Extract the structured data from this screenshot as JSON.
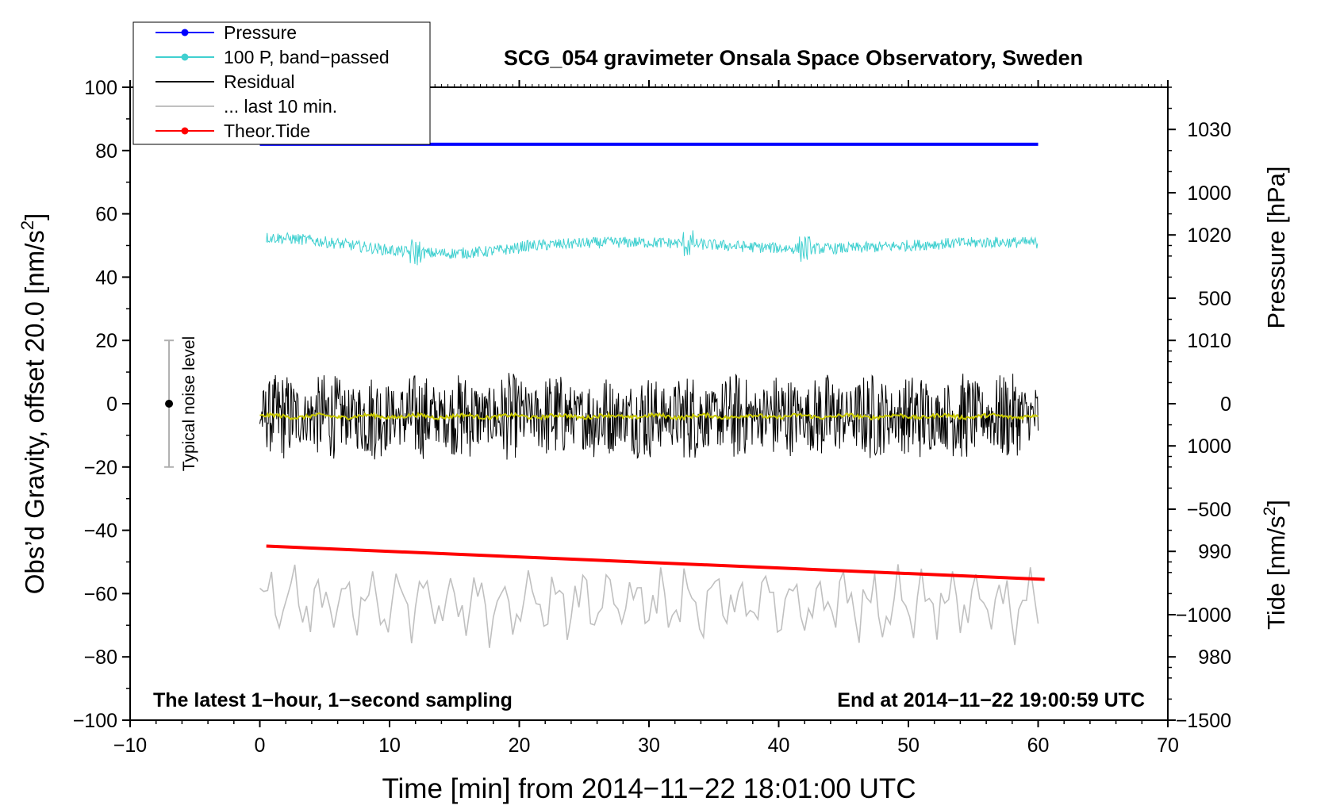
{
  "chart_data": {
    "type": "line",
    "title": "SCG_054 gravimeter Onsala Space Observatory, Sweden",
    "xlabel": "Time [min] from 2014−11−22 18:01:00 UTC",
    "ylabel_left": "Obs’d Gravity, offset 20.0 [nm/s",
    "ylabel_left_sup": "2",
    "ylabel_left_suffix": "]",
    "ylabel_pressure": "Pressure [hPa]",
    "ylabel_tide": "Tide [nm/s",
    "ylabel_tide_sup": "2",
    "ylabel_tide_suffix": "]",
    "xlim": [
      -10,
      70
    ],
    "ylim": [
      -100,
      100
    ],
    "pressure_lim": [
      974,
      1034
    ],
    "tide_lim": [
      -1500,
      1500
    ],
    "x_ticks": [
      -10,
      0,
      10,
      20,
      30,
      40,
      50,
      60,
      70
    ],
    "x_tick_labels": [
      "−10",
      "0",
      "10",
      "20",
      "30",
      "40",
      "50",
      "60",
      "70"
    ],
    "y_ticks": [
      100,
      80,
      60,
      40,
      20,
      0,
      -20,
      -40,
      -60,
      -80,
      -100
    ],
    "y_tick_labels": [
      "100",
      "80",
      "60",
      "40",
      "20",
      "0",
      "−20",
      "−40",
      "−60",
      "−80",
      "−100"
    ],
    "pressure_ticks": [
      1030,
      1020,
      1010,
      1000,
      990,
      980
    ],
    "pressure_tick_labels": [
      "1030",
      "1020",
      "1010",
      "1000",
      "990",
      "980"
    ],
    "tide_ticks": [
      1000,
      500,
      0,
      -500,
      -1000,
      -1500
    ],
    "tide_tick_labels": [
      "1000",
      "500",
      "0",
      "−500",
      "−1000",
      "−1500"
    ],
    "legend_position": "top-left",
    "legend": [
      {
        "label": "Pressure",
        "color": "#0000ff",
        "marker": true
      },
      {
        "label": "100 P, band−passed",
        "color": "#40d0d0",
        "marker": true
      },
      {
        "label": "Residual",
        "color": "#000000",
        "marker": false
      },
      {
        "label": "... last 10 min.",
        "color": "#c0c0c0",
        "marker": false
      },
      {
        "label": "Theor.Tide",
        "color": "#ff0000",
        "marker": true
      }
    ],
    "series": [
      {
        "name": "Pressure",
        "color": "#0000ff",
        "x_range": [
          0,
          60
        ],
        "level": 82,
        "y_axis": "left"
      },
      {
        "name": "100 P, band-passed",
        "color": "#40d0d0",
        "x_range": [
          0.5,
          60
        ],
        "level": 50,
        "amplitude": 3,
        "y_axis": "left"
      },
      {
        "name": "Residual",
        "color": "#000000",
        "x_range": [
          0,
          60
        ],
        "level": -4,
        "amplitude": 14,
        "y_axis": "left"
      },
      {
        "name": "Residual (smoothed)",
        "color": "#c8c800",
        "x_range": [
          0,
          60
        ],
        "level": -4,
        "amplitude": 1,
        "y_axis": "left"
      },
      {
        "name": "Theor.Tide",
        "color": "#ff0000",
        "x": [
          0.5,
          60.5
        ],
        "y": [
          -45,
          -55.5
        ],
        "y_axis": "left"
      },
      {
        "name": "... last 10 min.",
        "color": "#c0c0c0",
        "x_range": [
          0,
          60
        ],
        "level": -63,
        "amplitude": 12,
        "y_axis": "left"
      }
    ],
    "noise_indicator": {
      "label": "Typical noise level",
      "x": -7,
      "center": 0,
      "range": [
        -20,
        20
      ]
    },
    "annotation_left": "The latest 1−hour, 1−second sampling",
    "annotation_right": "End at 2014−11−22 19:00:59 UTC"
  }
}
